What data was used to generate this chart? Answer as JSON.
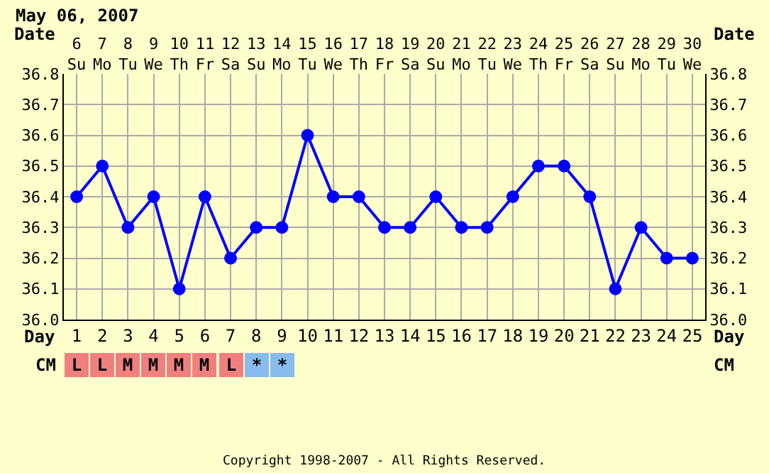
{
  "chart_data": {
    "type": "line",
    "title": "May 06, 2007",
    "xlabel": "Day",
    "x2label": "Date",
    "x": [
      1,
      2,
      3,
      4,
      5,
      6,
      7,
      8,
      9,
      10,
      11,
      12,
      13,
      14,
      15,
      16,
      17,
      18,
      19,
      20,
      21,
      22,
      23,
      24,
      25
    ],
    "series": [
      {
        "color": "#0000ff",
        "values": [
          36.4,
          36.5,
          36.3,
          36.4,
          36.1,
          36.4,
          36.2,
          36.3,
          36.3,
          36.6,
          36.4,
          36.4,
          36.3,
          36.3,
          36.4,
          36.3,
          36.3,
          36.4,
          36.5,
          36.5,
          36.4,
          36.1,
          36.3,
          36.2,
          36.2
        ]
      }
    ],
    "xlim": [
      0.5,
      25.5
    ],
    "xticks": [
      1,
      2,
      3,
      4,
      5,
      6,
      7,
      8,
      9,
      10,
      11,
      12,
      13,
      14,
      15,
      16,
      17,
      18,
      19,
      20,
      21,
      22,
      23,
      24,
      25
    ],
    "x2lim": [
      5.5,
      30.5
    ],
    "x2ticks": [
      {
        "value": 6,
        "label": "6\nSu"
      },
      {
        "value": 7,
        "label": "7\nMo"
      },
      {
        "value": 8,
        "label": "8\nTu"
      },
      {
        "value": 9,
        "label": "9\nWe"
      },
      {
        "value": 10,
        "label": "10\nTh"
      },
      {
        "value": 11,
        "label": "11\nFr"
      },
      {
        "value": 12,
        "label": "12\nSa"
      },
      {
        "value": 13,
        "label": "13\nSu"
      },
      {
        "value": 14,
        "label": "14\nMo"
      },
      {
        "value": 15,
        "label": "15\nTu"
      },
      {
        "value": 16,
        "label": "16\nWe"
      },
      {
        "value": 17,
        "label": "17\nTh"
      },
      {
        "value": 18,
        "label": "18\nFr"
      },
      {
        "value": 19,
        "label": "19\nSa"
      },
      {
        "value": 20,
        "label": "20\nSu"
      },
      {
        "value": 21,
        "label": "21\nMo"
      },
      {
        "value": 22,
        "label": "22\nTu"
      },
      {
        "value": 23,
        "label": "23\nWe"
      },
      {
        "value": 24,
        "label": "24\nTh"
      },
      {
        "value": 25,
        "label": "25\nFr"
      },
      {
        "value": 26,
        "label": "26\nSa"
      },
      {
        "value": 27,
        "label": "27\nSu"
      },
      {
        "value": 28,
        "label": "28\nMo"
      },
      {
        "value": 29,
        "label": "29\nTu"
      },
      {
        "value": 30,
        "label": "30\nWe"
      }
    ],
    "ylim": [
      36.0,
      36.8
    ],
    "yticks": [
      {
        "value": 36.0,
        "label": "36.0"
      },
      36.1,
      36.2,
      36.3,
      36.4,
      36.5,
      36.6,
      36.7,
      36.8
    ],
    "y2lim": [
      36.0,
      36.8
    ],
    "y2ticks": [
      {
        "value": 36.0,
        "label": "36.0"
      },
      36.1,
      36.2,
      36.3,
      36.4,
      36.5,
      36.6,
      36.7,
      36.8
    ],
    "grid": true,
    "marker": "circle",
    "line_style": "solid",
    "annotations": [
      "CM",
      "L",
      "L",
      "M",
      "M",
      "M",
      "M",
      "L",
      "*",
      "*",
      "Copyright 1998-2007 - All Rights Reserved."
    ]
  }
}
